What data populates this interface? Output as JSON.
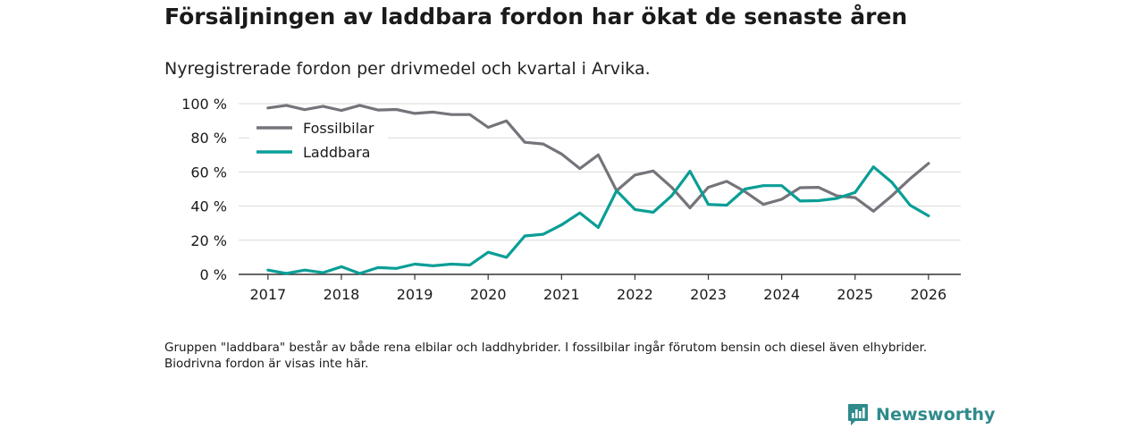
{
  "header": {
    "title": "Försäljningen av laddbara fordon har ökat de senaste åren",
    "subtitle": "Nyregistrerade fordon per drivmedel och kvartal i Arvika."
  },
  "chart_data": {
    "type": "line",
    "title": "Försäljningen av laddbara fordon har ökat de senaste åren",
    "subtitle": "Nyregistrerade fordon per drivmedel och kvartal i Arvika.",
    "xlabel": "",
    "ylabel": "",
    "x_ticks": [
      "2017",
      "2018",
      "2019",
      "2020",
      "2021",
      "2022",
      "2023",
      "2024",
      "2025",
      "2026"
    ],
    "x_tick_values": [
      2017,
      2018,
      2019,
      2020,
      2021,
      2022,
      2023,
      2024,
      2025,
      2026
    ],
    "xlim": [
      2016.6,
      2026.44
    ],
    "y_ticks": [
      "0 %",
      "20 %",
      "40 %",
      "60 %",
      "80 %",
      "100 %"
    ],
    "y_tick_values": [
      0,
      20,
      40,
      60,
      80,
      100
    ],
    "ylim": [
      0,
      100
    ],
    "grid": true,
    "legend_position": "top-left",
    "x": [
      2017,
      2017.25,
      2017.5,
      2017.75,
      2018,
      2018.25,
      2018.5,
      2018.75,
      2019,
      2019.25,
      2019.5,
      2019.75,
      2020,
      2020.25,
      2020.5,
      2020.75,
      2021,
      2021.25,
      2021.5,
      2021.75,
      2022,
      2022.25,
      2022.5,
      2022.75,
      2023,
      2023.25,
      2023.5,
      2023.75,
      2024,
      2024.25,
      2024.5,
      2024.75,
      2025,
      2025.25,
      2025.5,
      2025.75,
      2026
    ],
    "series": [
      {
        "name": "Fossilbilar",
        "color": "#76737a",
        "values": [
          97.5,
          99,
          96.5,
          98.5,
          96,
          99,
          96.3,
          96.6,
          94.3,
          95.1,
          93.6,
          93.6,
          86.1,
          89.9,
          77.4,
          76.4,
          70.5,
          62,
          70,
          49,
          58.2,
          60.6,
          51,
          39,
          51,
          54.5,
          48.5,
          41,
          44,
          50.8,
          51,
          46,
          45,
          37,
          46,
          56,
          65
        ]
      },
      {
        "name": "Laddbara",
        "color": "#0a9e96",
        "values": [
          2.5,
          0.5,
          2.5,
          1,
          4.5,
          0.5,
          4,
          3.5,
          6,
          5,
          6,
          5.5,
          13,
          10,
          22.5,
          23.5,
          29,
          36,
          27.5,
          49,
          38,
          36.4,
          46,
          60.4,
          41,
          40.5,
          50,
          52,
          52,
          43,
          43.2,
          44.5,
          48,
          63,
          54,
          40.5,
          34.3
        ]
      }
    ],
    "footnote": "Gruppen \"laddbara\" består av både rena elbilar och laddhybrider. I fossilbilar ingår förutom bensin och diesel även elhybrider. Biodrivna fordon är visas inte här."
  },
  "brand": {
    "name": "Newsworthy",
    "color": "#2f8a8c",
    "icon": "newsworthy-logo-icon"
  },
  "colors": {
    "grid": "#d9d9d9",
    "axis": "#333333",
    "text": "#1a1a1a"
  }
}
